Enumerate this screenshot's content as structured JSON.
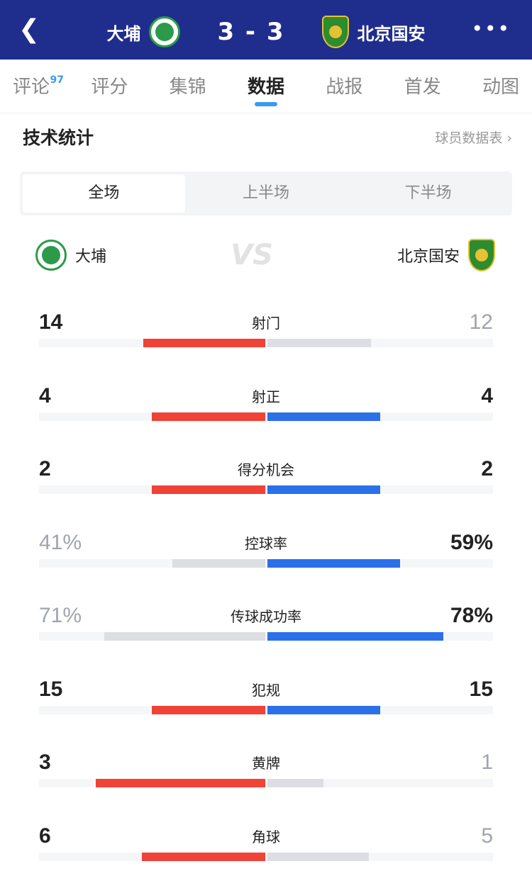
{
  "header": {
    "back_icon": "chevron-left-icon",
    "home": "大埔",
    "score": "3 - 3",
    "away": "北京国安",
    "more_icon": "more-dots-icon"
  },
  "tabs": [
    {
      "label": "评论",
      "badge": "97"
    },
    {
      "label": "评分"
    },
    {
      "label": "集锦"
    },
    {
      "label": "数据",
      "active": true
    },
    {
      "label": "战报"
    },
    {
      "label": "首发"
    },
    {
      "label": "动图"
    }
  ],
  "section": {
    "title": "技术统计",
    "link": "球员数据表 ›"
  },
  "periods": [
    {
      "label": "全场",
      "active": true
    },
    {
      "label": "上半场"
    },
    {
      "label": "下半场"
    }
  ],
  "teams": {
    "home": "大埔",
    "vs": "VS",
    "away": "北京国安"
  },
  "colors": {
    "header": "#1f2d8c",
    "home_bar": "#f04236",
    "away_bar": "#2b70e8",
    "lose_bar": "#dcdee3",
    "tab_accent": "#3a9af0"
  },
  "stats": [
    {
      "label": "射门",
      "home": "14",
      "away": "12",
      "home_pct": 0.54,
      "away_pct": 0.46
    },
    {
      "label": "射正",
      "home": "4",
      "away": "4",
      "home_pct": 0.5,
      "away_pct": 0.5
    },
    {
      "label": "得分机会",
      "home": "2",
      "away": "2",
      "home_pct": 0.5,
      "away_pct": 0.5
    },
    {
      "label": "控球率",
      "home": "41%",
      "away": "59%",
      "home_pct": 0.41,
      "away_pct": 0.59
    },
    {
      "label": "传球成功率",
      "home": "71%",
      "away": "78%",
      "home_pct": 0.71,
      "away_pct": 0.78
    },
    {
      "label": "犯规",
      "home": "15",
      "away": "15",
      "home_pct": 0.5,
      "away_pct": 0.5
    },
    {
      "label": "黄牌",
      "home": "3",
      "away": "1",
      "home_pct": 0.75,
      "away_pct": 0.25
    },
    {
      "label": "角球",
      "home": "6",
      "away": "5",
      "home_pct": 0.545,
      "away_pct": 0.45
    }
  ]
}
